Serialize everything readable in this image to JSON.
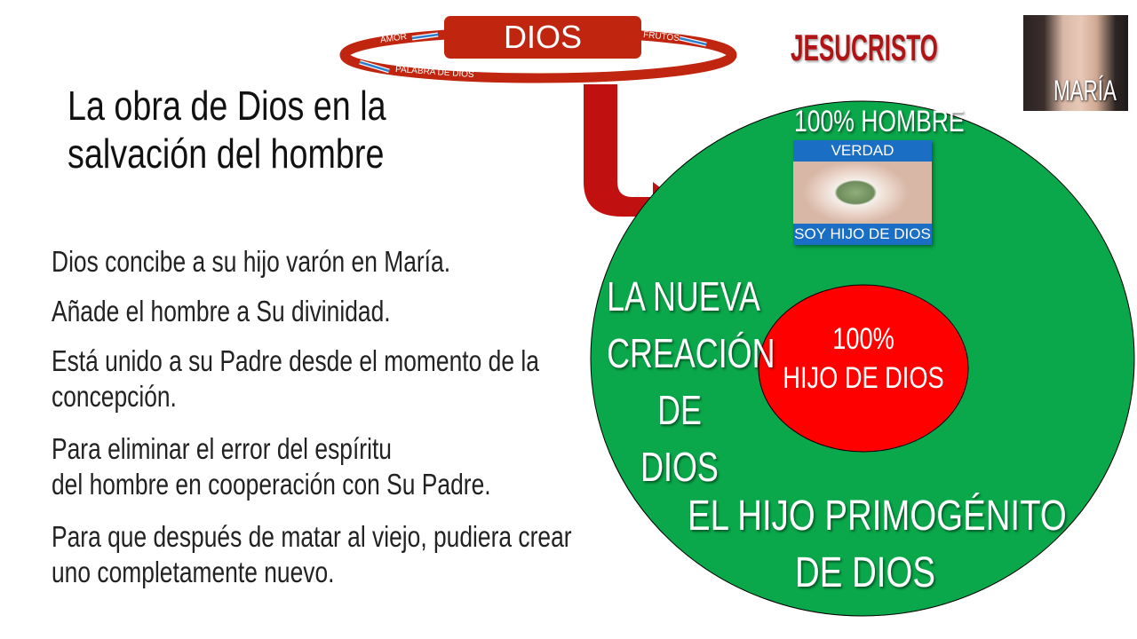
{
  "title": [
    "La obra de Dios en la",
    "salvación del hombre"
  ],
  "cycle": {
    "center": "DIOS",
    "left_label": "AMOR",
    "right_label": "FRUTOS",
    "bottom_label": "PALABRA DE DIOS"
  },
  "bullets": [
    [
      "Dios concibe a su hijo varón en María."
    ],
    [
      "Añade el hombre a Su divinidad."
    ],
    [
      "Está unido a su Padre desde el momento de la",
      "concepción."
    ],
    [
      "Para eliminar el error del espíritu",
      "del hombre en cooperación con Su Padre."
    ],
    [
      "Para que después de matar al viejo, pudiera crear",
      "uno completamente nuevo."
    ]
  ],
  "jesucristo": "JESUCRISTO",
  "maria": "MARÍA",
  "outer_circle": {
    "top_label": "100% HOMBRE",
    "eye_top": "VERDAD",
    "eye_bottom": "SOY HIJO DE DIOS",
    "left_lines": [
      "LA NUEVA",
      "CREACIÓN",
      "DE",
      "DIOS"
    ],
    "bottom_lines": [
      "EL HIJO PRIMOGÉNITO",
      "DE DIOS"
    ],
    "color": "#0aa84a"
  },
  "inner_circle": {
    "lines": [
      "100%",
      "HIJO DE DIOS"
    ],
    "color": "#ff0000"
  },
  "colors": {
    "cycle_red": "#c0260f",
    "arrow_blue": "#2f7fd0",
    "jesus_red": "#b01414"
  }
}
